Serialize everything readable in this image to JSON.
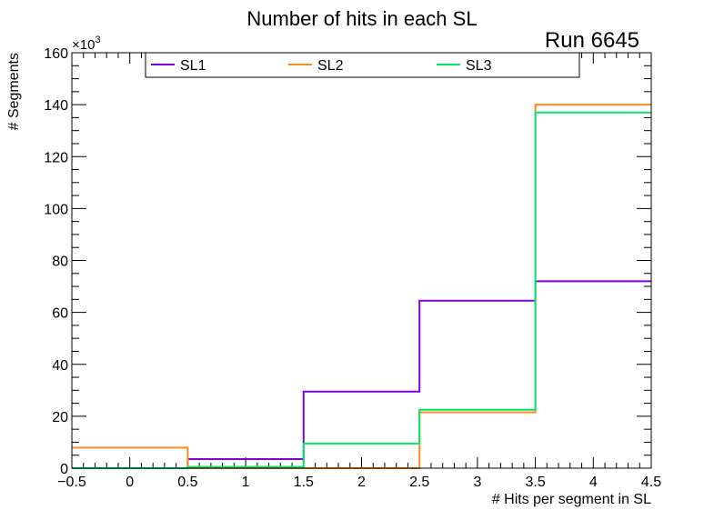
{
  "chart_data": {
    "type": "histogram",
    "title": "Number of hits in each SL",
    "annotation": "Run 6645",
    "xlabel": "# Hits per segment in SL",
    "ylabel": "# Segments",
    "y_multiplier": "×10",
    "y_exponent": "3",
    "xlim": [
      -0.5,
      4.5
    ],
    "ylim": [
      0,
      160
    ],
    "bin_edges": [
      -0.5,
      0.5,
      1.5,
      2.5,
      3.5,
      4.5
    ],
    "x_ticks": [
      -0.5,
      0,
      0.5,
      1,
      1.5,
      2,
      2.5,
      3,
      3.5,
      4,
      4.5
    ],
    "x_tick_labels": [
      "−0.5",
      "0",
      "0.5",
      "1",
      "1.5",
      "2",
      "2.5",
      "3",
      "3.5",
      "4",
      "4.5"
    ],
    "y_ticks": [
      0,
      20,
      40,
      60,
      80,
      100,
      120,
      140,
      160
    ],
    "y_tick_labels": [
      "0",
      "20",
      "40",
      "60",
      "80",
      "100",
      "120",
      "140",
      "160"
    ],
    "series": [
      {
        "name": "SL1",
        "color": "#8000e0",
        "values": [
          0,
          3.5,
          29.5,
          64.5,
          72
        ]
      },
      {
        "name": "SL2",
        "color": "#ff8c1a",
        "values": [
          7.9,
          0,
          0,
          21.5,
          140
        ]
      },
      {
        "name": "SL3",
        "color": "#00e66b",
        "values": [
          0,
          0.5,
          9.5,
          22.5,
          137
        ]
      }
    ],
    "legend_position": "top"
  }
}
